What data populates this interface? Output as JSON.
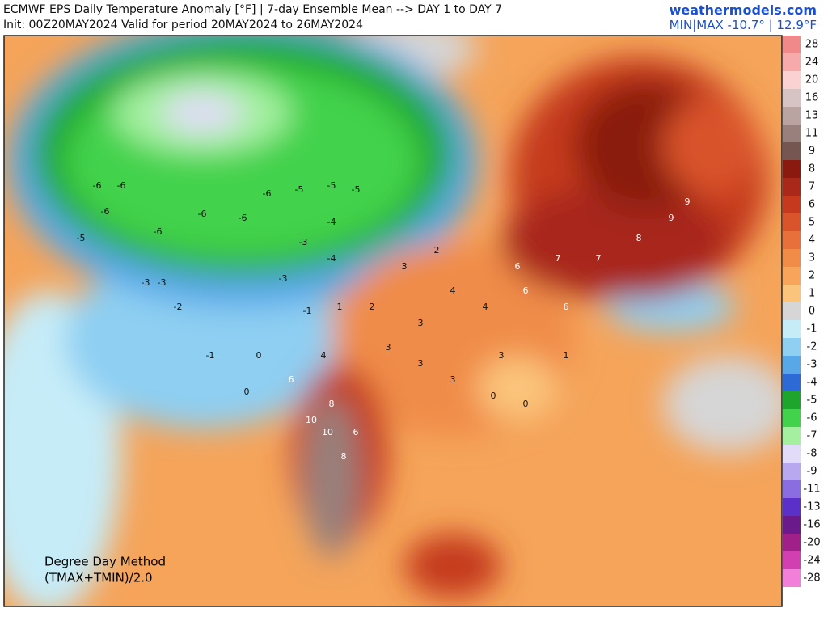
{
  "header": {
    "title": "ECMWF EPS Daily Temperature Anomaly [°F] | 7-day Ensemble Mean --> DAY 1 to DAY 7",
    "subtitle": "Init: 00Z20MAY2024 Valid for period 20MAY2024 to 26MAY2024",
    "site": "weathermodels.com",
    "minmax": "MIN|MAX -10.7° | 12.9°F"
  },
  "note": {
    "line1": "Degree Day Method",
    "line2": "(TMAX+TMIN)/2.0"
  },
  "colorbar": {
    "labels": [
      28,
      24,
      20,
      16,
      13,
      11,
      9,
      8,
      7,
      6,
      5,
      4,
      3,
      2,
      1,
      0,
      -1,
      -2,
      -3,
      -4,
      -5,
      -6,
      -7,
      -8,
      -9,
      -11,
      -13,
      -16,
      -20,
      -24,
      -28
    ],
    "colors": [
      "#f08a8a",
      "#f6aaaa",
      "#fbd2d2",
      "#d6c4c4",
      "#b9a4a2",
      "#98807c",
      "#765650",
      "#8a1a10",
      "#a8281a",
      "#c53a1e",
      "#d9532b",
      "#e8703a",
      "#f08c48",
      "#f6a55a",
      "#fbc47c",
      "#d6d6d6",
      "#c6ecf8",
      "#8ecff2",
      "#58a8e8",
      "#2e6ad6",
      "#1ea62c",
      "#42d24c",
      "#a4f0a0",
      "#e2dcf8",
      "#b8a8f0",
      "#8a6ee0",
      "#5a30c8",
      "#6a1a8a",
      "#a0208a",
      "#d040b0",
      "#f080d8"
    ]
  },
  "map_labels": [
    -6,
    -6,
    -6,
    -5,
    -6,
    -6,
    -6,
    -6,
    -5,
    -5,
    -5,
    -4,
    -3,
    -4,
    -3,
    -3,
    -3,
    -2,
    -1,
    0,
    0,
    -1,
    1,
    2,
    3,
    2,
    4,
    4,
    6,
    7,
    7,
    8,
    9,
    9,
    6,
    6,
    3,
    3,
    4,
    6,
    8,
    10,
    10,
    6,
    8,
    3,
    3,
    3,
    0,
    0,
    1
  ]
}
